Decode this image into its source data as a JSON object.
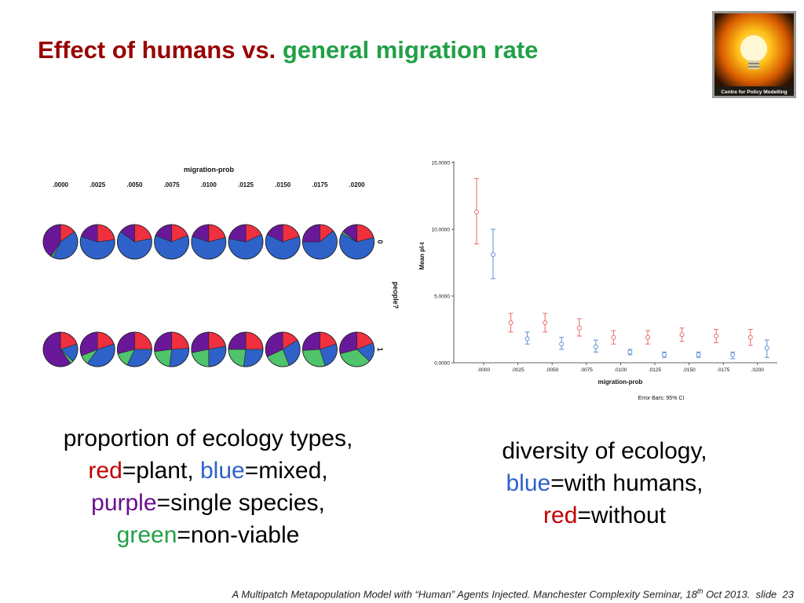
{
  "slide": {
    "title_part1": "Effect of humans vs.",
    "title_part2": "general migration rate",
    "title_color1": "#990000",
    "title_color2": "#22a047",
    "logo_caption": "Centre for Policy Modelling",
    "footer_text_a": "A Multipatch Metapopulation Model with “Human” Agents Injected. Manchester Complexity Seminar, 18",
    "footer_sup": "th",
    "footer_text_b": " Oct 2013.",
    "footer_slide_label": "slide",
    "footer_slide_number": "23"
  },
  "left_caption": {
    "line1": "proportion of ecology types,",
    "red_word": "red",
    "red_rest": "=plant, ",
    "blue_word": "blue",
    "blue_rest": "=mixed,",
    "purple_word": "purple",
    "purple_rest": "=single species,",
    "green_word": "green",
    "green_rest": "=non-viable"
  },
  "right_caption": {
    "line1": "diversity of ecology,",
    "blue_word": "blue",
    "blue_rest": "=with humans,",
    "red_word": "red",
    "red_rest": "=without"
  },
  "colors": {
    "plant": "#f0303f",
    "mixed": "#2e62c8",
    "single": "#6a189a",
    "nonviable": "#4fc46c",
    "without_humans": "#e86a6a",
    "with_humans": "#5f8fd6"
  },
  "chart_data": [
    {
      "type": "pie",
      "title": "migration-prob",
      "column_labels": [
        ".0000",
        ".0025",
        ".0050",
        ".0075",
        ".0100",
        ".0125",
        ".0150",
        ".0175",
        ".0200"
      ],
      "row_axis_label": "people?",
      "row_labels": [
        "0",
        "1"
      ],
      "category_order": [
        "plant",
        "mixed",
        "nonviable",
        "single"
      ],
      "rows": [
        [
          [
            0.15,
            0.42,
            0.02,
            0.41
          ],
          [
            0.23,
            0.57,
            0.0,
            0.2
          ],
          [
            0.22,
            0.63,
            0.0,
            0.15
          ],
          [
            0.19,
            0.62,
            0.0,
            0.19
          ],
          [
            0.21,
            0.59,
            0.0,
            0.2
          ],
          [
            0.18,
            0.6,
            0.0,
            0.22
          ],
          [
            0.2,
            0.62,
            0.0,
            0.18
          ],
          [
            0.14,
            0.61,
            0.0,
            0.25
          ],
          [
            0.21,
            0.62,
            0.02,
            0.15
          ]
        ],
        [
          [
            0.2,
            0.17,
            0.03,
            0.6
          ],
          [
            0.2,
            0.4,
            0.09,
            0.31
          ],
          [
            0.25,
            0.32,
            0.14,
            0.29
          ],
          [
            0.24,
            0.28,
            0.21,
            0.27
          ],
          [
            0.22,
            0.28,
            0.22,
            0.28
          ],
          [
            0.25,
            0.27,
            0.23,
            0.25
          ],
          [
            0.16,
            0.28,
            0.24,
            0.32
          ],
          [
            0.2,
            0.25,
            0.29,
            0.26
          ],
          [
            0.19,
            0.18,
            0.34,
            0.29
          ]
        ]
      ]
    },
    {
      "type": "scatter",
      "subtype": "errorbar",
      "xlabel": "migration-prob",
      "ylabel": "Mean pl-t",
      "categories": [
        ".0000",
        ".0025",
        ".0050",
        ".0075",
        ".0100",
        ".0125",
        ".0150",
        ".0175",
        ".0200"
      ],
      "y_ticks": [
        "0.0000",
        "5.0000",
        "10.0000",
        "15.0000"
      ],
      "ylim": [
        0,
        15
      ],
      "note": "Error Bars: 95% CI",
      "series": [
        {
          "key": "without_humans",
          "means": [
            11.3,
            3.0,
            3.0,
            2.6,
            1.9,
            1.9,
            2.1,
            2.0,
            1.9
          ],
          "lower": [
            8.9,
            2.3,
            2.3,
            2.0,
            1.4,
            1.4,
            1.6,
            1.5,
            1.3
          ],
          "upper": [
            13.8,
            3.7,
            3.7,
            3.3,
            2.4,
            2.4,
            2.6,
            2.5,
            2.5
          ]
        },
        {
          "key": "with_humans",
          "means": [
            8.1,
            1.8,
            1.4,
            1.2,
            0.8,
            0.6,
            0.6,
            0.6,
            1.1
          ],
          "lower": [
            6.3,
            1.4,
            1.0,
            0.8,
            0.6,
            0.4,
            0.4,
            0.3,
            0.4
          ],
          "upper": [
            10.0,
            2.3,
            1.9,
            1.7,
            1.0,
            0.8,
            0.8,
            0.8,
            1.7
          ]
        }
      ]
    }
  ]
}
